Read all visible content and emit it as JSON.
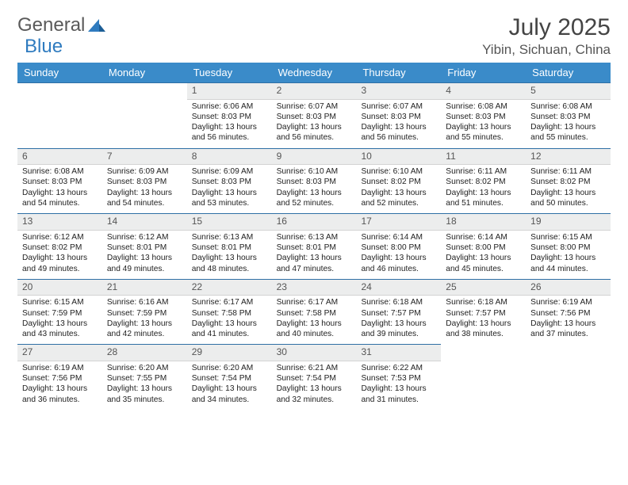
{
  "logo": {
    "text1": "General",
    "text2": "Blue"
  },
  "title": "July 2025",
  "location": "Yibin, Sichuan, China",
  "colors": {
    "header_bg": "#3a8bc9",
    "header_text": "#ffffff",
    "day_num_bg": "#eceded",
    "day_border_top": "#2f6fa5",
    "body_text": "#222222"
  },
  "weekdays": [
    "Sunday",
    "Monday",
    "Tuesday",
    "Wednesday",
    "Thursday",
    "Friday",
    "Saturday"
  ],
  "weeks": [
    {
      "cells": [
        {
          "empty": true
        },
        {
          "empty": true
        },
        {
          "n": "1",
          "sr": "Sunrise: 6:06 AM",
          "ss": "Sunset: 8:03 PM",
          "d1": "Daylight: 13 hours",
          "d2": "and 56 minutes."
        },
        {
          "n": "2",
          "sr": "Sunrise: 6:07 AM",
          "ss": "Sunset: 8:03 PM",
          "d1": "Daylight: 13 hours",
          "d2": "and 56 minutes."
        },
        {
          "n": "3",
          "sr": "Sunrise: 6:07 AM",
          "ss": "Sunset: 8:03 PM",
          "d1": "Daylight: 13 hours",
          "d2": "and 56 minutes."
        },
        {
          "n": "4",
          "sr": "Sunrise: 6:08 AM",
          "ss": "Sunset: 8:03 PM",
          "d1": "Daylight: 13 hours",
          "d2": "and 55 minutes."
        },
        {
          "n": "5",
          "sr": "Sunrise: 6:08 AM",
          "ss": "Sunset: 8:03 PM",
          "d1": "Daylight: 13 hours",
          "d2": "and 55 minutes."
        }
      ]
    },
    {
      "cells": [
        {
          "n": "6",
          "sr": "Sunrise: 6:08 AM",
          "ss": "Sunset: 8:03 PM",
          "d1": "Daylight: 13 hours",
          "d2": "and 54 minutes."
        },
        {
          "n": "7",
          "sr": "Sunrise: 6:09 AM",
          "ss": "Sunset: 8:03 PM",
          "d1": "Daylight: 13 hours",
          "d2": "and 54 minutes."
        },
        {
          "n": "8",
          "sr": "Sunrise: 6:09 AM",
          "ss": "Sunset: 8:03 PM",
          "d1": "Daylight: 13 hours",
          "d2": "and 53 minutes."
        },
        {
          "n": "9",
          "sr": "Sunrise: 6:10 AM",
          "ss": "Sunset: 8:03 PM",
          "d1": "Daylight: 13 hours",
          "d2": "and 52 minutes."
        },
        {
          "n": "10",
          "sr": "Sunrise: 6:10 AM",
          "ss": "Sunset: 8:02 PM",
          "d1": "Daylight: 13 hours",
          "d2": "and 52 minutes."
        },
        {
          "n": "11",
          "sr": "Sunrise: 6:11 AM",
          "ss": "Sunset: 8:02 PM",
          "d1": "Daylight: 13 hours",
          "d2": "and 51 minutes."
        },
        {
          "n": "12",
          "sr": "Sunrise: 6:11 AM",
          "ss": "Sunset: 8:02 PM",
          "d1": "Daylight: 13 hours",
          "d2": "and 50 minutes."
        }
      ]
    },
    {
      "cells": [
        {
          "n": "13",
          "sr": "Sunrise: 6:12 AM",
          "ss": "Sunset: 8:02 PM",
          "d1": "Daylight: 13 hours",
          "d2": "and 49 minutes."
        },
        {
          "n": "14",
          "sr": "Sunrise: 6:12 AM",
          "ss": "Sunset: 8:01 PM",
          "d1": "Daylight: 13 hours",
          "d2": "and 49 minutes."
        },
        {
          "n": "15",
          "sr": "Sunrise: 6:13 AM",
          "ss": "Sunset: 8:01 PM",
          "d1": "Daylight: 13 hours",
          "d2": "and 48 minutes."
        },
        {
          "n": "16",
          "sr": "Sunrise: 6:13 AM",
          "ss": "Sunset: 8:01 PM",
          "d1": "Daylight: 13 hours",
          "d2": "and 47 minutes."
        },
        {
          "n": "17",
          "sr": "Sunrise: 6:14 AM",
          "ss": "Sunset: 8:00 PM",
          "d1": "Daylight: 13 hours",
          "d2": "and 46 minutes."
        },
        {
          "n": "18",
          "sr": "Sunrise: 6:14 AM",
          "ss": "Sunset: 8:00 PM",
          "d1": "Daylight: 13 hours",
          "d2": "and 45 minutes."
        },
        {
          "n": "19",
          "sr": "Sunrise: 6:15 AM",
          "ss": "Sunset: 8:00 PM",
          "d1": "Daylight: 13 hours",
          "d2": "and 44 minutes."
        }
      ]
    },
    {
      "cells": [
        {
          "n": "20",
          "sr": "Sunrise: 6:15 AM",
          "ss": "Sunset: 7:59 PM",
          "d1": "Daylight: 13 hours",
          "d2": "and 43 minutes."
        },
        {
          "n": "21",
          "sr": "Sunrise: 6:16 AM",
          "ss": "Sunset: 7:59 PM",
          "d1": "Daylight: 13 hours",
          "d2": "and 42 minutes."
        },
        {
          "n": "22",
          "sr": "Sunrise: 6:17 AM",
          "ss": "Sunset: 7:58 PM",
          "d1": "Daylight: 13 hours",
          "d2": "and 41 minutes."
        },
        {
          "n": "23",
          "sr": "Sunrise: 6:17 AM",
          "ss": "Sunset: 7:58 PM",
          "d1": "Daylight: 13 hours",
          "d2": "and 40 minutes."
        },
        {
          "n": "24",
          "sr": "Sunrise: 6:18 AM",
          "ss": "Sunset: 7:57 PM",
          "d1": "Daylight: 13 hours",
          "d2": "and 39 minutes."
        },
        {
          "n": "25",
          "sr": "Sunrise: 6:18 AM",
          "ss": "Sunset: 7:57 PM",
          "d1": "Daylight: 13 hours",
          "d2": "and 38 minutes."
        },
        {
          "n": "26",
          "sr": "Sunrise: 6:19 AM",
          "ss": "Sunset: 7:56 PM",
          "d1": "Daylight: 13 hours",
          "d2": "and 37 minutes."
        }
      ]
    },
    {
      "cells": [
        {
          "n": "27",
          "sr": "Sunrise: 6:19 AM",
          "ss": "Sunset: 7:56 PM",
          "d1": "Daylight: 13 hours",
          "d2": "and 36 minutes."
        },
        {
          "n": "28",
          "sr": "Sunrise: 6:20 AM",
          "ss": "Sunset: 7:55 PM",
          "d1": "Daylight: 13 hours",
          "d2": "and 35 minutes."
        },
        {
          "n": "29",
          "sr": "Sunrise: 6:20 AM",
          "ss": "Sunset: 7:54 PM",
          "d1": "Daylight: 13 hours",
          "d2": "and 34 minutes."
        },
        {
          "n": "30",
          "sr": "Sunrise: 6:21 AM",
          "ss": "Sunset: 7:54 PM",
          "d1": "Daylight: 13 hours",
          "d2": "and 32 minutes."
        },
        {
          "n": "31",
          "sr": "Sunrise: 6:22 AM",
          "ss": "Sunset: 7:53 PM",
          "d1": "Daylight: 13 hours",
          "d2": "and 31 minutes."
        },
        {
          "empty": true,
          "trailing": true
        },
        {
          "empty": true,
          "trailing": true
        }
      ]
    }
  ]
}
